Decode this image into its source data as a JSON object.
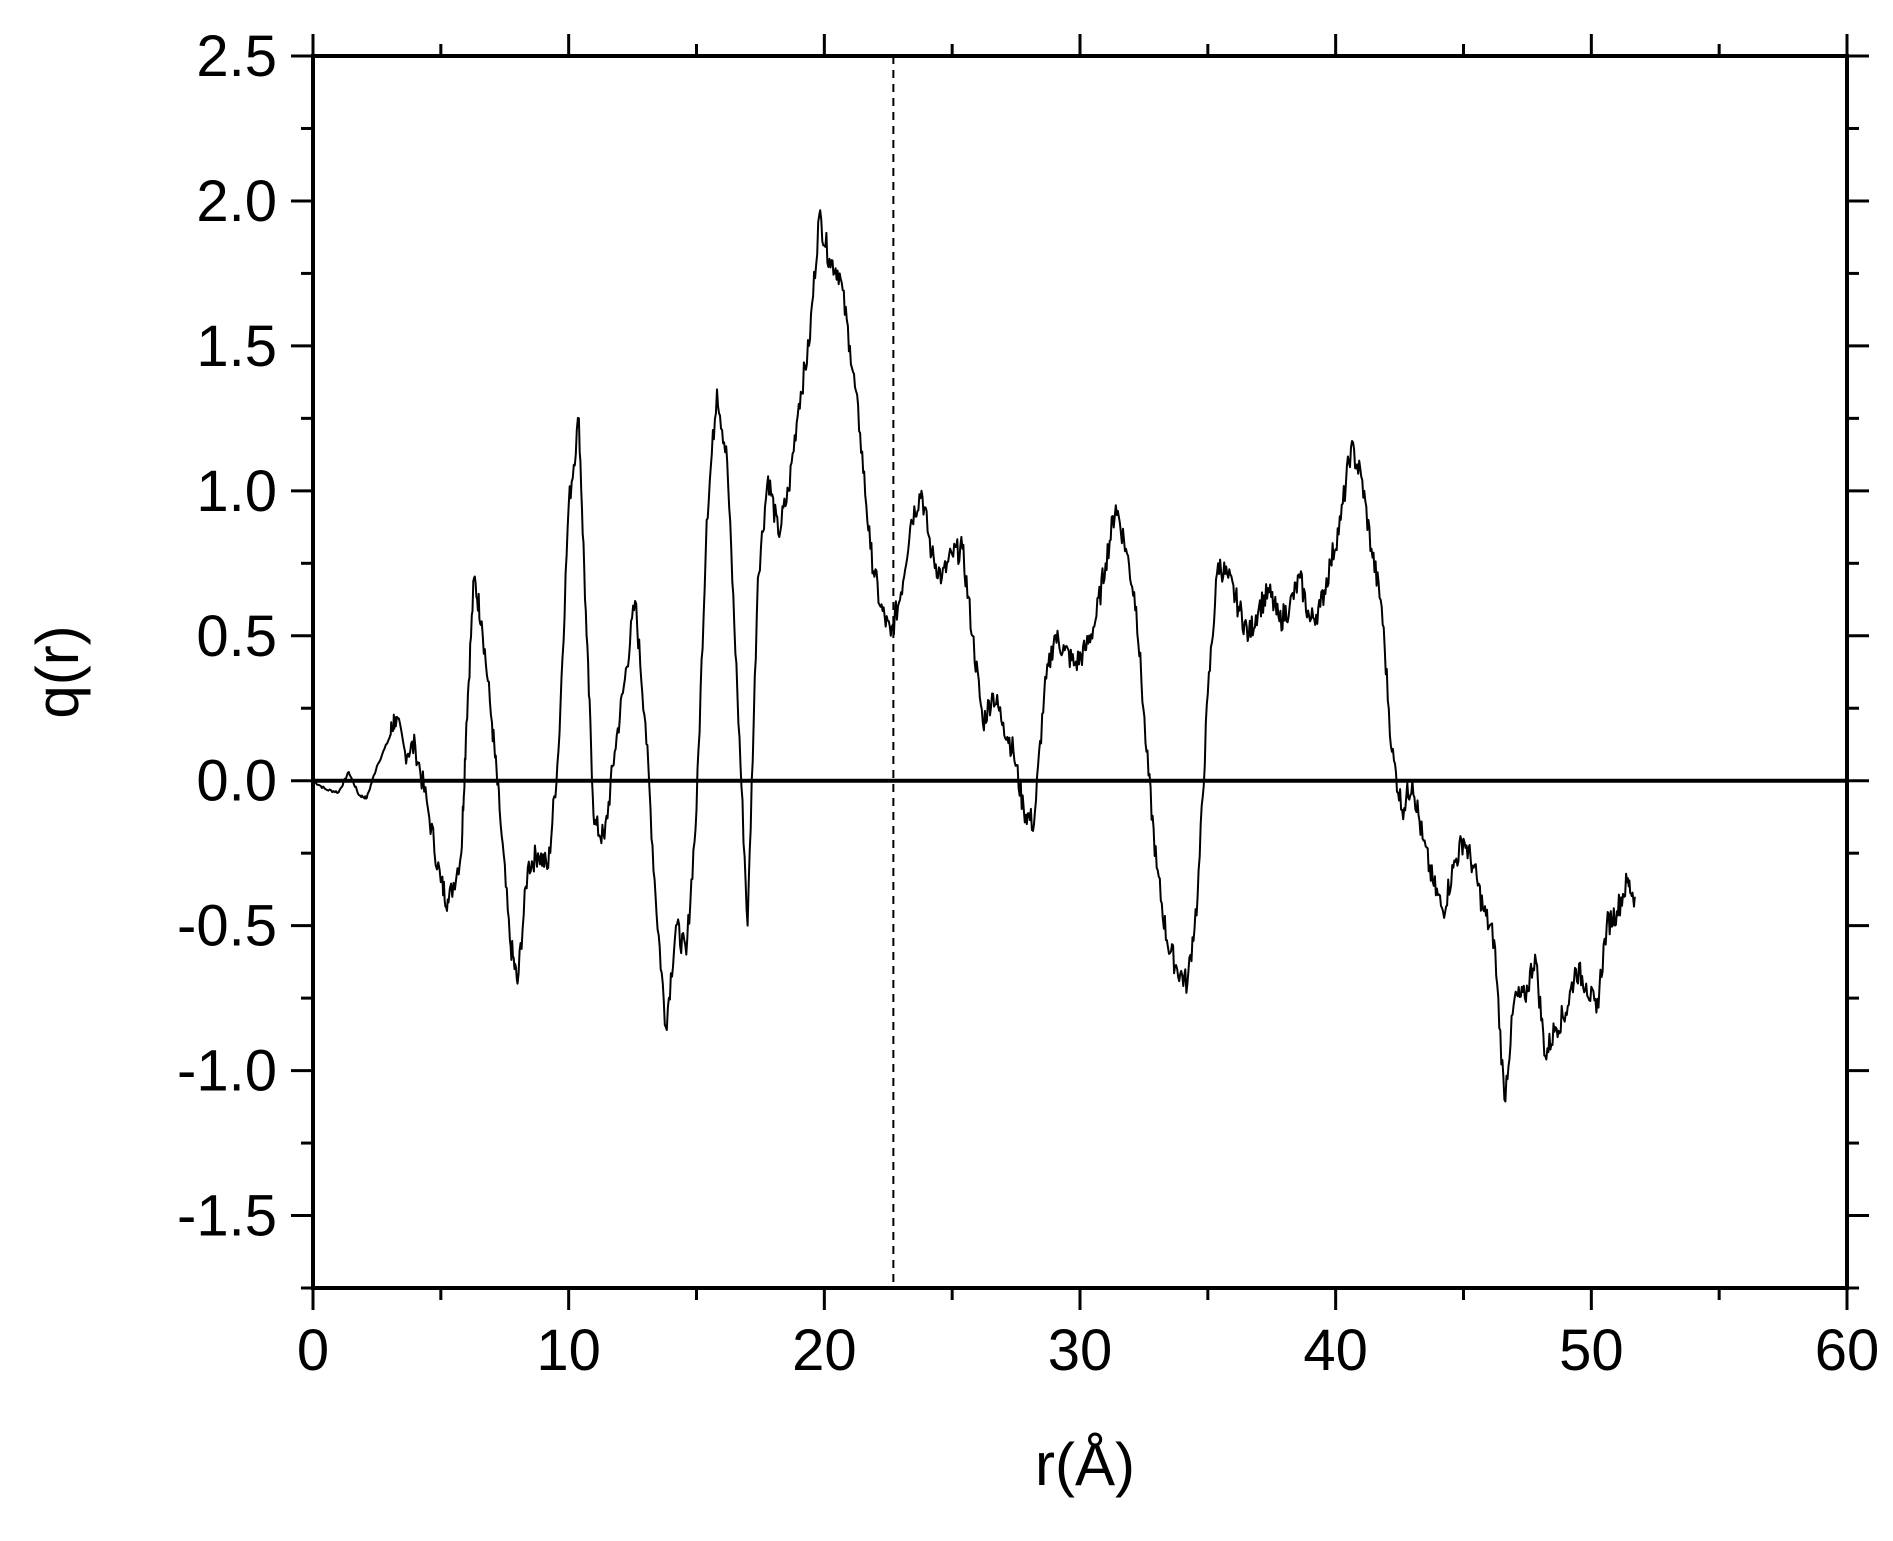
{
  "chart_data": {
    "type": "line",
    "title": "",
    "xlabel": "r(Å)",
    "ylabel": "q(r)",
    "xlim": [
      0,
      60
    ],
    "ylim": [
      -1.75,
      2.5
    ],
    "x_ticks": [
      0,
      10,
      20,
      30,
      40,
      50,
      60
    ],
    "x_tick_labels": [
      "0",
      "10",
      "20",
      "30",
      "40",
      "50",
      "60"
    ],
    "y_ticks": [
      -1.5,
      -1.0,
      -0.5,
      0.0,
      0.5,
      1.0,
      1.5,
      2.0,
      2.5
    ],
    "y_tick_labels": [
      "-1.5",
      "-1.0",
      "-0.5",
      "0.0",
      "0.5",
      "1.0",
      "1.5",
      "2.0",
      "2.5"
    ],
    "grid": false,
    "reference_lines": [
      {
        "orientation": "horizontal",
        "value": 0.0,
        "style": "solid"
      },
      {
        "orientation": "vertical",
        "value": 22.7,
        "style": "dashed"
      }
    ],
    "series": [
      {
        "color": "#000000",
        "x": [
          0.0,
          0.5,
          1.0,
          1.4,
          1.8,
          2.1,
          2.5,
          3.0,
          3.2,
          3.6,
          4.0,
          4.5,
          5.0,
          5.3,
          5.8,
          6.0,
          6.3,
          6.6,
          7.0,
          7.3,
          7.7,
          8.0,
          8.4,
          8.8,
          9.2,
          9.6,
          10.0,
          10.4,
          10.7,
          11.0,
          11.4,
          11.8,
          12.2,
          12.6,
          13.0,
          13.4,
          13.8,
          14.2,
          14.6,
          15.0,
          15.4,
          15.8,
          16.2,
          16.6,
          17.0,
          17.4,
          17.8,
          18.2,
          18.6,
          19.0,
          19.4,
          19.8,
          20.2,
          20.6,
          21.0,
          21.4,
          21.8,
          22.2,
          22.6,
          23.0,
          23.4,
          23.8,
          24.2,
          24.6,
          25.0,
          25.4,
          25.8,
          26.2,
          26.6,
          27.0,
          27.4,
          27.8,
          28.2,
          28.6,
          29.0,
          29.4,
          29.8,
          30.2,
          30.6,
          31.0,
          31.4,
          31.8,
          32.2,
          32.6,
          33.0,
          33.4,
          33.8,
          34.2,
          34.6,
          35.0,
          35.4,
          35.8,
          36.2,
          36.6,
          37.0,
          37.4,
          37.8,
          38.2,
          38.6,
          39.0,
          39.4,
          39.8,
          40.2,
          40.6,
          41.0,
          41.4,
          41.8,
          42.2,
          42.6,
          43.0,
          43.4,
          43.8,
          44.2,
          44.6,
          45.0,
          45.4,
          45.8,
          46.2,
          46.6,
          47.0,
          47.4,
          47.8,
          48.2,
          48.6,
          49.0,
          49.4,
          49.8,
          50.2,
          50.6,
          51.0,
          51.4,
          51.7
        ],
        "y": [
          0.0,
          -0.03,
          -0.04,
          0.03,
          -0.05,
          -0.06,
          0.05,
          0.15,
          0.22,
          0.1,
          0.12,
          -0.1,
          -0.35,
          -0.42,
          -0.25,
          0.2,
          0.7,
          0.55,
          0.2,
          -0.1,
          -0.55,
          -0.7,
          -0.3,
          -0.25,
          -0.3,
          0.1,
          0.95,
          1.25,
          0.5,
          -0.15,
          -0.2,
          0.1,
          0.35,
          0.62,
          0.2,
          -0.4,
          -0.85,
          -0.5,
          -0.6,
          -0.1,
          0.9,
          1.35,
          1.1,
          0.3,
          -0.5,
          0.7,
          1.05,
          0.85,
          1.0,
          1.3,
          1.5,
          1.95,
          1.8,
          1.75,
          1.5,
          1.2,
          0.8,
          0.6,
          0.5,
          0.65,
          0.9,
          1.0,
          0.78,
          0.7,
          0.78,
          0.8,
          0.5,
          0.2,
          0.3,
          0.2,
          0.1,
          -0.1,
          -0.15,
          0.3,
          0.5,
          0.45,
          0.4,
          0.45,
          0.55,
          0.75,
          0.95,
          0.8,
          0.6,
          0.1,
          -0.3,
          -0.55,
          -0.65,
          -0.7,
          -0.4,
          0.3,
          0.75,
          0.7,
          0.6,
          0.5,
          0.6,
          0.65,
          0.55,
          0.6,
          0.7,
          0.55,
          0.6,
          0.75,
          0.9,
          1.15,
          1.05,
          0.8,
          0.6,
          0.1,
          -0.1,
          0.0,
          -0.2,
          -0.35,
          -0.45,
          -0.3,
          -0.2,
          -0.3,
          -0.45,
          -0.55,
          -1.1,
          -0.75,
          -0.75,
          -0.6,
          -0.95,
          -0.85,
          -0.8,
          -0.65,
          -0.7,
          -0.8,
          -0.5,
          -0.45,
          -0.35,
          -0.4
        ]
      }
    ]
  }
}
